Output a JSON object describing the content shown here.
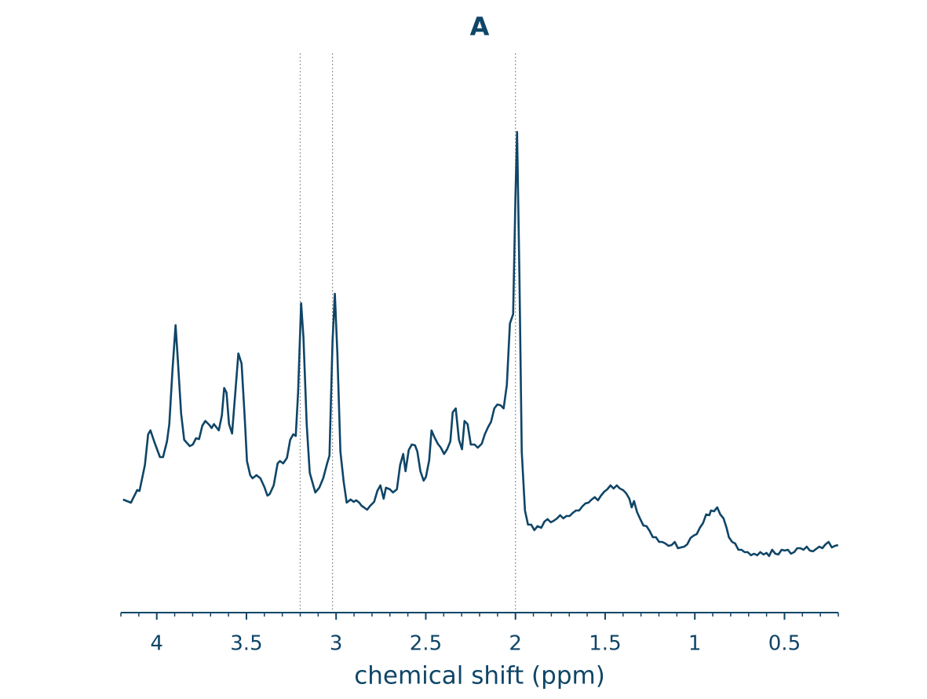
{
  "chart_data": {
    "type": "line",
    "title": "A",
    "xlabel": "chemical shift (ppm)",
    "color": "#0f4567",
    "x": [
      4.188,
      4.144,
      4.109,
      4.096,
      4.066,
      4.048,
      4.035,
      4.013,
      3.982,
      3.965,
      3.943,
      3.93,
      3.912,
      3.895,
      3.882,
      3.864,
      3.847,
      3.816,
      3.799,
      3.781,
      3.764,
      3.746,
      3.729,
      3.707,
      3.694,
      3.681,
      3.654,
      3.637,
      3.624,
      3.611,
      3.597,
      3.58,
      3.562,
      3.545,
      3.527,
      3.51,
      3.497,
      3.479,
      3.466,
      3.444,
      3.422,
      3.4,
      3.383,
      3.37,
      3.348,
      3.326,
      3.313,
      3.295,
      3.274,
      3.256,
      3.239,
      3.225,
      3.212,
      3.195,
      3.182,
      3.164,
      3.147,
      3.116,
      3.094,
      3.072,
      3.05,
      3.037,
      3.02,
      3.007,
      2.993,
      2.976,
      2.958,
      2.941,
      2.919,
      2.902,
      2.888,
      2.871,
      2.858,
      2.845,
      2.827,
      2.81,
      2.788,
      2.77,
      2.753,
      2.735,
      2.722,
      2.7,
      2.683,
      2.661,
      2.643,
      2.626,
      2.613,
      2.595,
      2.578,
      2.56,
      2.547,
      2.53,
      2.512,
      2.499,
      2.481,
      2.468,
      2.451,
      2.433,
      2.416,
      2.398,
      2.381,
      2.363,
      2.35,
      2.333,
      2.315,
      2.298,
      2.284,
      2.267,
      2.249,
      2.228,
      2.21,
      2.188,
      2.171,
      2.153,
      2.136,
      2.118,
      2.101,
      2.083,
      2.066,
      2.048,
      2.031,
      2.013,
      2.0,
      1.991,
      1.978,
      1.965,
      1.947,
      1.93,
      1.912,
      1.895,
      1.877,
      1.856,
      1.838,
      1.821,
      1.803,
      1.786,
      1.768,
      1.751,
      1.733,
      1.716,
      1.698,
      1.68,
      1.663,
      1.645,
      1.628,
      1.61,
      1.593,
      1.575,
      1.558,
      1.54,
      1.523,
      1.505,
      1.488,
      1.47,
      1.453,
      1.435,
      1.418,
      1.4,
      1.383,
      1.365,
      1.352,
      1.339,
      1.322,
      1.304,
      1.287,
      1.269,
      1.252,
      1.234,
      1.217,
      1.199,
      1.182,
      1.164,
      1.147,
      1.129,
      1.112,
      1.094,
      1.077,
      1.059,
      1.042,
      1.024,
      1.007,
      0.989,
      0.972,
      0.954,
      0.937,
      0.919,
      0.91,
      0.893,
      0.875,
      0.858,
      0.84,
      0.823,
      0.81,
      0.792,
      0.775,
      0.757,
      0.74,
      0.722,
      0.705,
      0.687,
      0.67,
      0.652,
      0.635,
      0.617,
      0.6,
      0.586,
      0.569,
      0.551,
      0.534,
      0.516,
      0.499,
      0.481,
      0.464,
      0.446,
      0.429,
      0.411,
      0.394,
      0.376,
      0.359,
      0.341,
      0.324,
      0.306,
      0.289,
      0.271,
      0.254,
      0.236,
      0.219,
      0.201
    ],
    "values": [
      144,
      140,
      156,
      155,
      188,
      227,
      232,
      217,
      198,
      198,
      218,
      240,
      310,
      366,
      320,
      253,
      220,
      212,
      214,
      222,
      221,
      238,
      244,
      239,
      235,
      240,
      232,
      251,
      286,
      280,
      240,
      228,
      280,
      330,
      317,
      250,
      193,
      175,
      171,
      175,
      171,
      160,
      149,
      151,
      162,
      190,
      193,
      190,
      197,
      220,
      227,
      225,
      280,
      394,
      350,
      240,
      178,
      153,
      159,
      171,
      190,
      200,
      345,
      406,
      330,
      205,
      167,
      140,
      144,
      141,
      143,
      140,
      136,
      134,
      131,
      136,
      141,
      155,
      162,
      145,
      159,
      157,
      153,
      157,
      188,
      202,
      180,
      207,
      214,
      213,
      205,
      180,
      168,
      173,
      194,
      232,
      223,
      215,
      210,
      202,
      208,
      218,
      255,
      260,
      220,
      208,
      244,
      240,
      214,
      214,
      210,
      215,
      227,
      236,
      243,
      260,
      265,
      264,
      260,
      290,
      368,
      380,
      530,
      612,
      430,
      205,
      130,
      112,
      112,
      105,
      110,
      108,
      116,
      119,
      115,
      117,
      120,
      124,
      120,
      123,
      123,
      127,
      130,
      130,
      135,
      139,
      140,
      144,
      147,
      143,
      149,
      154,
      157,
      162,
      158,
      162,
      158,
      156,
      152,
      145,
      134,
      142,
      128,
      119,
      111,
      110,
      104,
      96,
      96,
      90,
      90,
      88,
      85,
      86,
      90,
      82,
      83,
      84,
      87,
      95,
      98,
      100,
      108,
      114,
      125,
      124,
      130,
      129,
      134,
      125,
      120,
      108,
      96,
      90,
      88,
      80,
      80,
      77,
      77,
      73,
      75,
      73,
      77,
      74,
      76,
      72,
      80,
      75,
      74,
      80,
      79,
      80,
      75,
      77,
      82,
      82,
      80,
      84,
      79,
      78,
      81,
      84,
      82,
      87,
      90,
      83,
      85,
      86
    ],
    "xlim": [
      4.2,
      0.2
    ],
    "ylim": [
      0,
      712
    ],
    "xticks": [
      4,
      3.5,
      3,
      2.5,
      2,
      1.5,
      1,
      0.5
    ],
    "xminorticks": [
      4.2,
      4.1,
      4.0,
      3.9,
      3.8,
      3.7,
      3.6,
      3.5,
      3.4,
      3.3,
      3.2,
      3.1,
      3.0,
      2.9,
      2.8,
      2.7,
      2.6,
      2.5,
      2.4,
      2.3,
      2.2,
      2.1,
      2.0,
      1.9,
      1.8,
      1.7,
      1.6,
      1.5,
      1.4,
      1.3,
      1.2,
      1.1,
      1.0,
      0.9,
      0.8,
      0.7,
      0.6,
      0.5,
      0.4,
      0.3,
      0.2
    ],
    "vlines": [
      3.2,
      3.02,
      2.0
    ],
    "vline_color": "#777777"
  }
}
